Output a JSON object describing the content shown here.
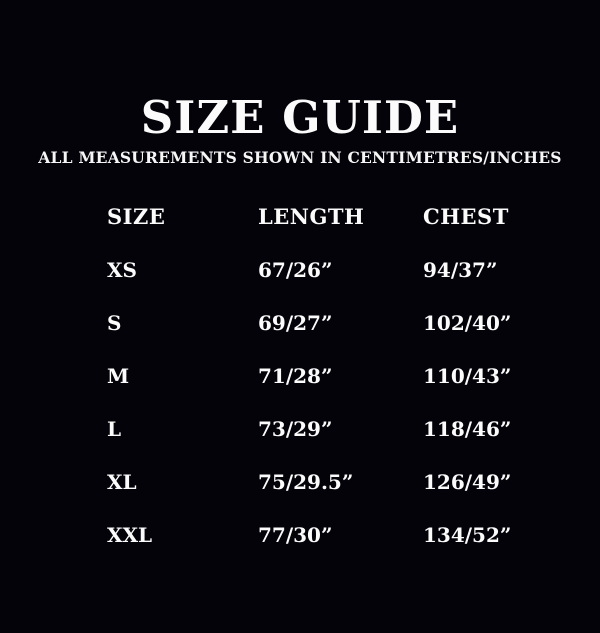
{
  "header": {
    "title": "SIZE GUIDE",
    "subtitle": "ALL MEASUREMENTS SHOWN IN CENTIMETRES/INCHES"
  },
  "colors": {
    "background": "#030309",
    "text": "#fbfbfb"
  },
  "chart_data": {
    "type": "table",
    "title": "SIZE GUIDE",
    "subtitle": "ALL MEASUREMENTS SHOWN IN CENTIMETRES/INCHES",
    "columns": [
      "SIZE",
      "LENGTH",
      "CHEST"
    ],
    "rows": [
      [
        "XS",
        "67/26”",
        "94/37”"
      ],
      [
        "S",
        "69/27”",
        "102/40”"
      ],
      [
        "M",
        "71/28”",
        "110/43”"
      ],
      [
        "L",
        "73/29”",
        "118/46”"
      ],
      [
        "XL",
        "75/29.5”",
        "126/49”"
      ],
      [
        "XXL",
        "77/30”",
        "134/52”"
      ]
    ],
    "layout": {
      "alignment": "left",
      "units": "centimetres/inches"
    }
  }
}
